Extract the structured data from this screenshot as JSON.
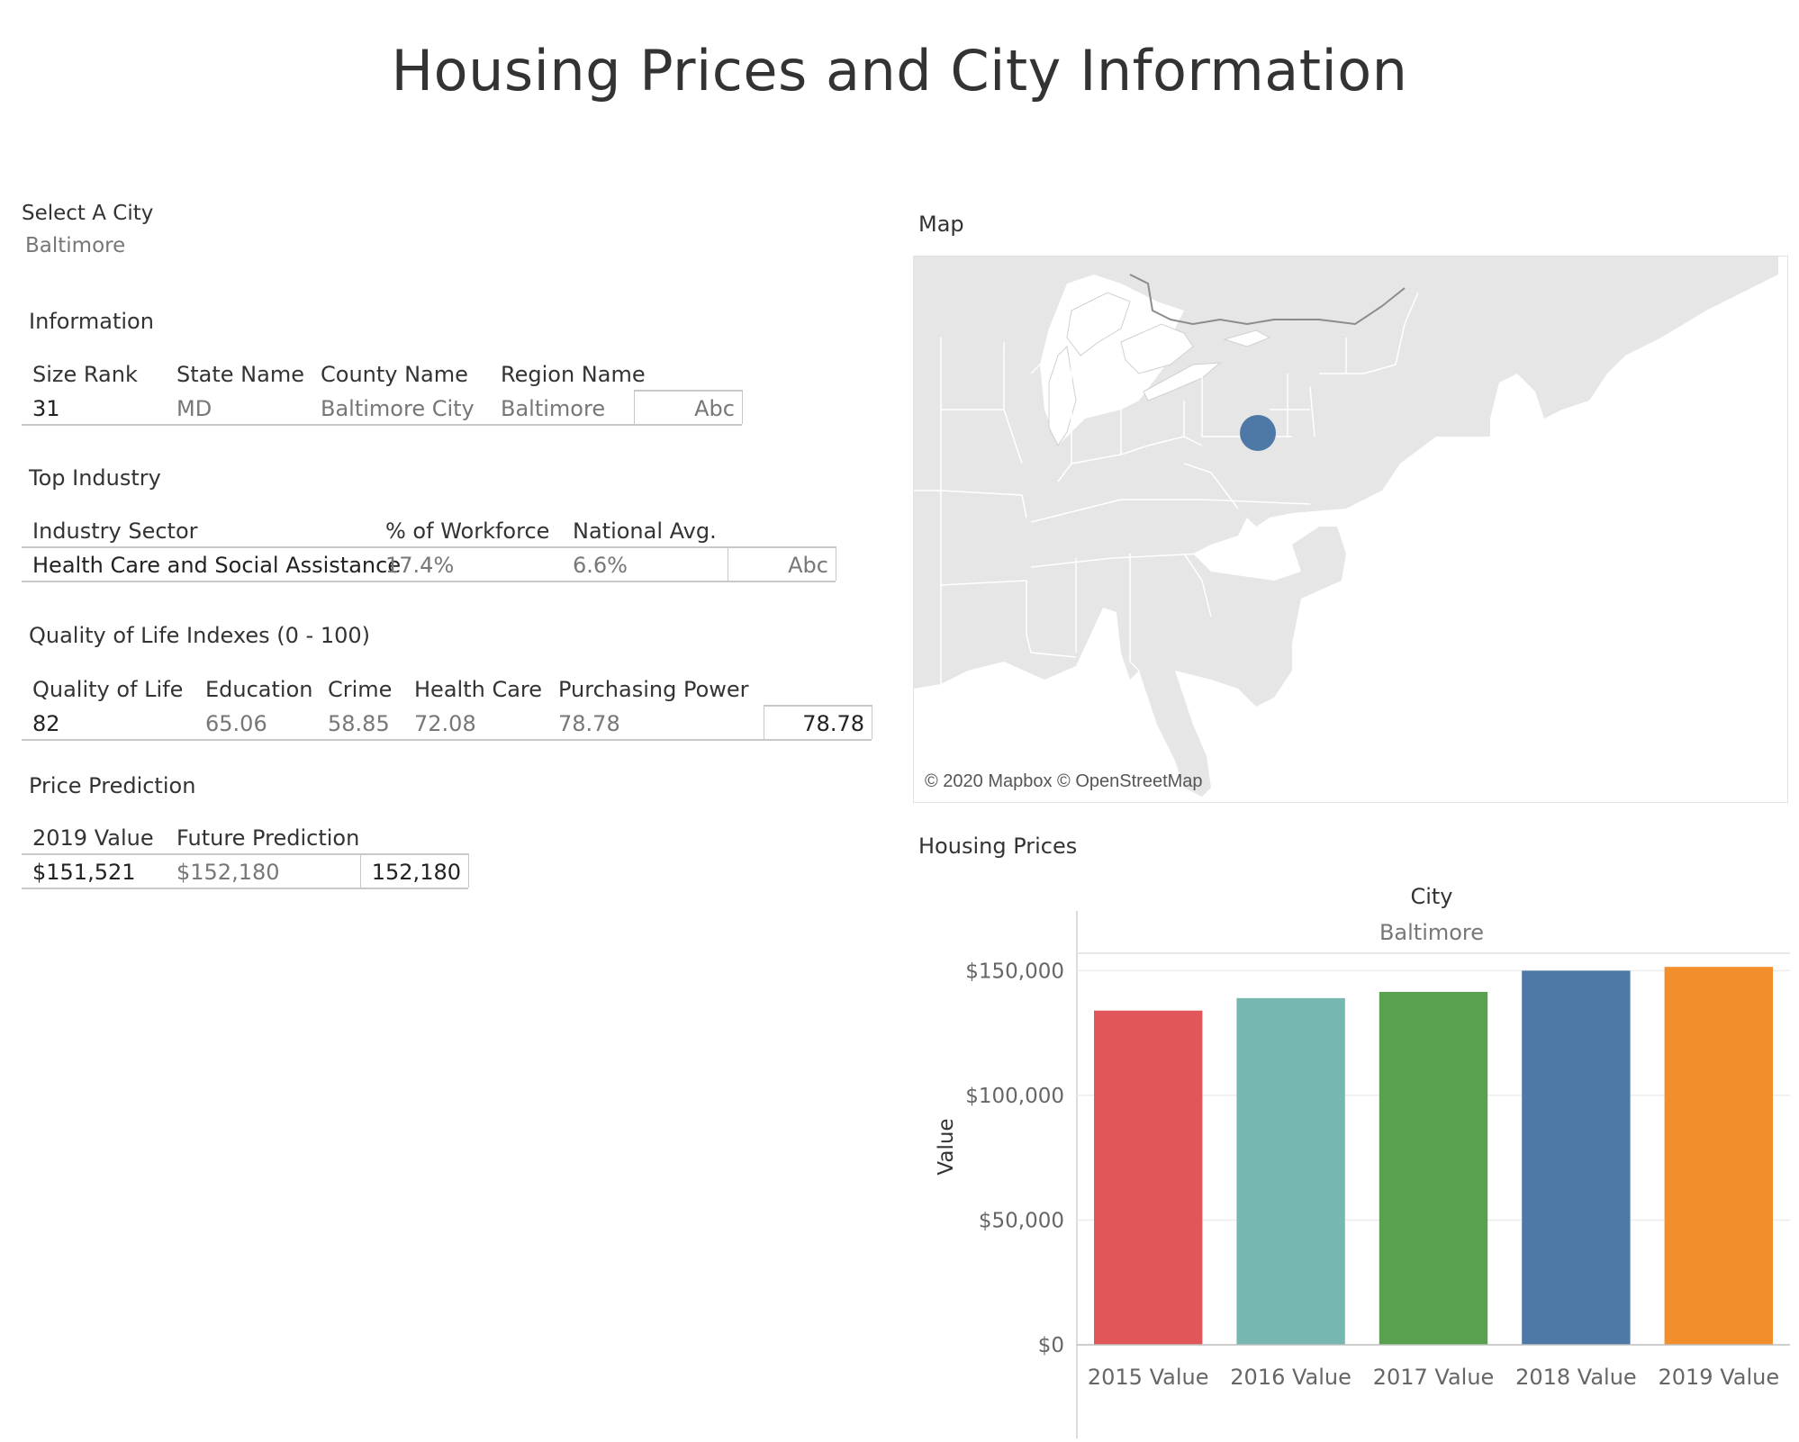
{
  "page": {
    "title": "Housing Prices and City Information"
  },
  "filter": {
    "label": "Select A City",
    "value": "Baltimore"
  },
  "information": {
    "title": "Information",
    "headers": [
      "Size Rank",
      "State Name",
      "County Name",
      "Region Name"
    ],
    "row": [
      "31",
      "MD",
      "Baltimore City",
      "Baltimore"
    ],
    "placeholder": "Abc"
  },
  "top_industry": {
    "title": "Top Industry",
    "headers": [
      "Industry Sector",
      "% of Workforce",
      "National Avg."
    ],
    "row": [
      "Health Care and Social Assistance",
      "17.4%",
      "6.6%"
    ],
    "placeholder": "Abc"
  },
  "quality": {
    "title": "Quality of Life Indexes (0 - 100)",
    "headers": [
      "Quality of Life",
      "Education",
      "Crime",
      "Health Care",
      "Purchasing Power"
    ],
    "row": [
      "82",
      "65.06",
      "58.85",
      "72.08",
      "78.78"
    ],
    "extra": "78.78"
  },
  "prediction": {
    "title": "Price Prediction",
    "headers": [
      "2019 Value",
      "Future Prediction"
    ],
    "row": [
      "$151,521",
      "$152,180"
    ],
    "extra": "152,180"
  },
  "map": {
    "title": "Map",
    "attribution": "© 2020 Mapbox © OpenStreetMap",
    "marker_color": "#4e79a7",
    "land_color": "#e6e6e6",
    "border_color": "#ffffff"
  },
  "chart_data": {
    "type": "bar",
    "title": "Housing Prices",
    "column_header": "City",
    "column_value": "Baltimore",
    "ylabel": "Value",
    "xlabel": "",
    "categories": [
      "2015 Value",
      "2016 Value",
      "2017 Value",
      "2018 Value",
      "2019 Value"
    ],
    "values": [
      134000,
      139000,
      141500,
      150000,
      151521
    ],
    "colors": [
      "#e15759",
      "#76b7b2",
      "#59a14f",
      "#4e79a7",
      "#f28e2b"
    ],
    "ylim": [
      0,
      157000
    ],
    "yticks": [
      0,
      50000,
      100000,
      150000
    ],
    "ytick_labels": [
      "$0",
      "$50,000",
      "$100,000",
      "$150,000"
    ],
    "grid": true
  }
}
